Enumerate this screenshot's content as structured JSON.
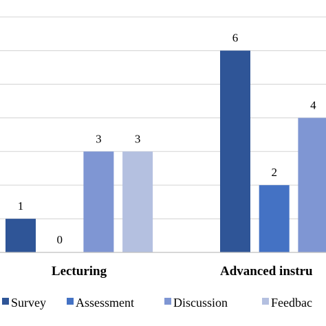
{
  "chart_data": {
    "type": "bar",
    "categories": [
      "Lecturing",
      "Advanced instru"
    ],
    "series": [
      {
        "name": "Survey",
        "color": "#2f5597",
        "values": [
          1,
          6
        ]
      },
      {
        "name": "Assessment",
        "color": "#4472c4",
        "values": [
          0,
          2
        ]
      },
      {
        "name": "Discussion",
        "color": "#7f96d3",
        "values": [
          3,
          4
        ]
      },
      {
        "name": "Feedbac",
        "color": "#b4c0e0",
        "values": [
          3,
          null
        ]
      }
    ],
    "data_labels": true,
    "ylim": [
      0,
      7
    ],
    "grid": true,
    "legend": "bottom"
  }
}
